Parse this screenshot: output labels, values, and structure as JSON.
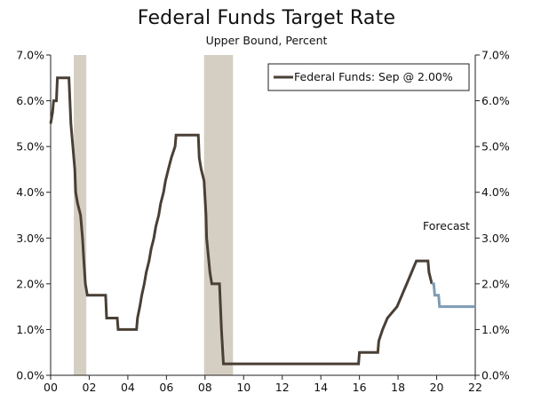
{
  "chart_data": {
    "type": "line",
    "title": "Federal Funds Target Rate",
    "subtitle": "Upper Bound, Percent",
    "xlabel": "",
    "ylabel": "",
    "xlim": [
      2000,
      2022
    ],
    "ylim": [
      0,
      7
    ],
    "x_tick_labels": [
      "00",
      "02",
      "04",
      "06",
      "08",
      "10",
      "12",
      "14",
      "16",
      "18",
      "20",
      "22"
    ],
    "y_tick_labels_left": [
      "0.0%",
      "1.0%",
      "2.0%",
      "3.0%",
      "4.0%",
      "5.0%",
      "6.0%",
      "7.0%"
    ],
    "y_tick_labels_right": [
      "0.0%",
      "1.0%",
      "2.0%",
      "3.0%",
      "4.0%",
      "5.0%",
      "6.0%",
      "7.0%"
    ],
    "grid": false,
    "legend_position": "top-right",
    "annotation": "Forecast",
    "recession_shading": [
      [
        2001.2,
        2001.85
      ],
      [
        2007.95,
        2009.45
      ]
    ],
    "colors": {
      "actual": "#4a3f35",
      "forecast": "#7f9bb5",
      "recession": "#d5cfc3",
      "axis": "#222222"
    },
    "series": [
      {
        "name": "Federal Funds: Sep @ 2.00%",
        "values": [
          [
            2000.0,
            5.5
          ],
          [
            2000.1,
            5.75
          ],
          [
            2000.15,
            6.0
          ],
          [
            2000.3,
            6.0
          ],
          [
            2000.35,
            6.5
          ],
          [
            2000.95,
            6.5
          ],
          [
            2001.0,
            6.0
          ],
          [
            2001.05,
            5.5
          ],
          [
            2001.15,
            5.0
          ],
          [
            2001.25,
            4.5
          ],
          [
            2001.3,
            4.0
          ],
          [
            2001.4,
            3.75
          ],
          [
            2001.55,
            3.5
          ],
          [
            2001.65,
            3.0
          ],
          [
            2001.72,
            2.5
          ],
          [
            2001.8,
            2.0
          ],
          [
            2001.9,
            1.75
          ],
          [
            2002.85,
            1.75
          ],
          [
            2002.9,
            1.25
          ],
          [
            2003.45,
            1.25
          ],
          [
            2003.5,
            1.0
          ],
          [
            2004.45,
            1.0
          ],
          [
            2004.5,
            1.25
          ],
          [
            2004.62,
            1.5
          ],
          [
            2004.72,
            1.75
          ],
          [
            2004.85,
            2.0
          ],
          [
            2004.95,
            2.25
          ],
          [
            2005.1,
            2.5
          ],
          [
            2005.2,
            2.75
          ],
          [
            2005.35,
            3.0
          ],
          [
            2005.45,
            3.25
          ],
          [
            2005.6,
            3.5
          ],
          [
            2005.7,
            3.75
          ],
          [
            2005.85,
            4.0
          ],
          [
            2005.95,
            4.25
          ],
          [
            2006.1,
            4.5
          ],
          [
            2006.25,
            4.75
          ],
          [
            2006.45,
            5.0
          ],
          [
            2006.5,
            5.25
          ],
          [
            2007.65,
            5.25
          ],
          [
            2007.7,
            4.75
          ],
          [
            2007.8,
            4.5
          ],
          [
            2007.95,
            4.25
          ],
          [
            2008.05,
            3.5
          ],
          [
            2008.08,
            3.0
          ],
          [
            2008.25,
            2.25
          ],
          [
            2008.35,
            2.0
          ],
          [
            2008.75,
            2.0
          ],
          [
            2008.8,
            1.5
          ],
          [
            2008.85,
            1.0
          ],
          [
            2008.95,
            0.25
          ],
          [
            2015.95,
            0.25
          ],
          [
            2016.0,
            0.5
          ],
          [
            2016.95,
            0.5
          ],
          [
            2017.0,
            0.75
          ],
          [
            2017.2,
            1.0
          ],
          [
            2017.45,
            1.25
          ],
          [
            2017.95,
            1.5
          ],
          [
            2018.2,
            1.75
          ],
          [
            2018.45,
            2.0
          ],
          [
            2018.7,
            2.25
          ],
          [
            2018.95,
            2.5
          ],
          [
            2019.55,
            2.5
          ],
          [
            2019.6,
            2.25
          ],
          [
            2019.75,
            2.0
          ]
        ]
      },
      {
        "name": "Forecast",
        "values": [
          [
            2019.75,
            2.0
          ],
          [
            2019.85,
            2.0
          ],
          [
            2019.9,
            1.75
          ],
          [
            2020.1,
            1.75
          ],
          [
            2020.15,
            1.5
          ],
          [
            2022.0,
            1.5
          ]
        ]
      }
    ]
  }
}
